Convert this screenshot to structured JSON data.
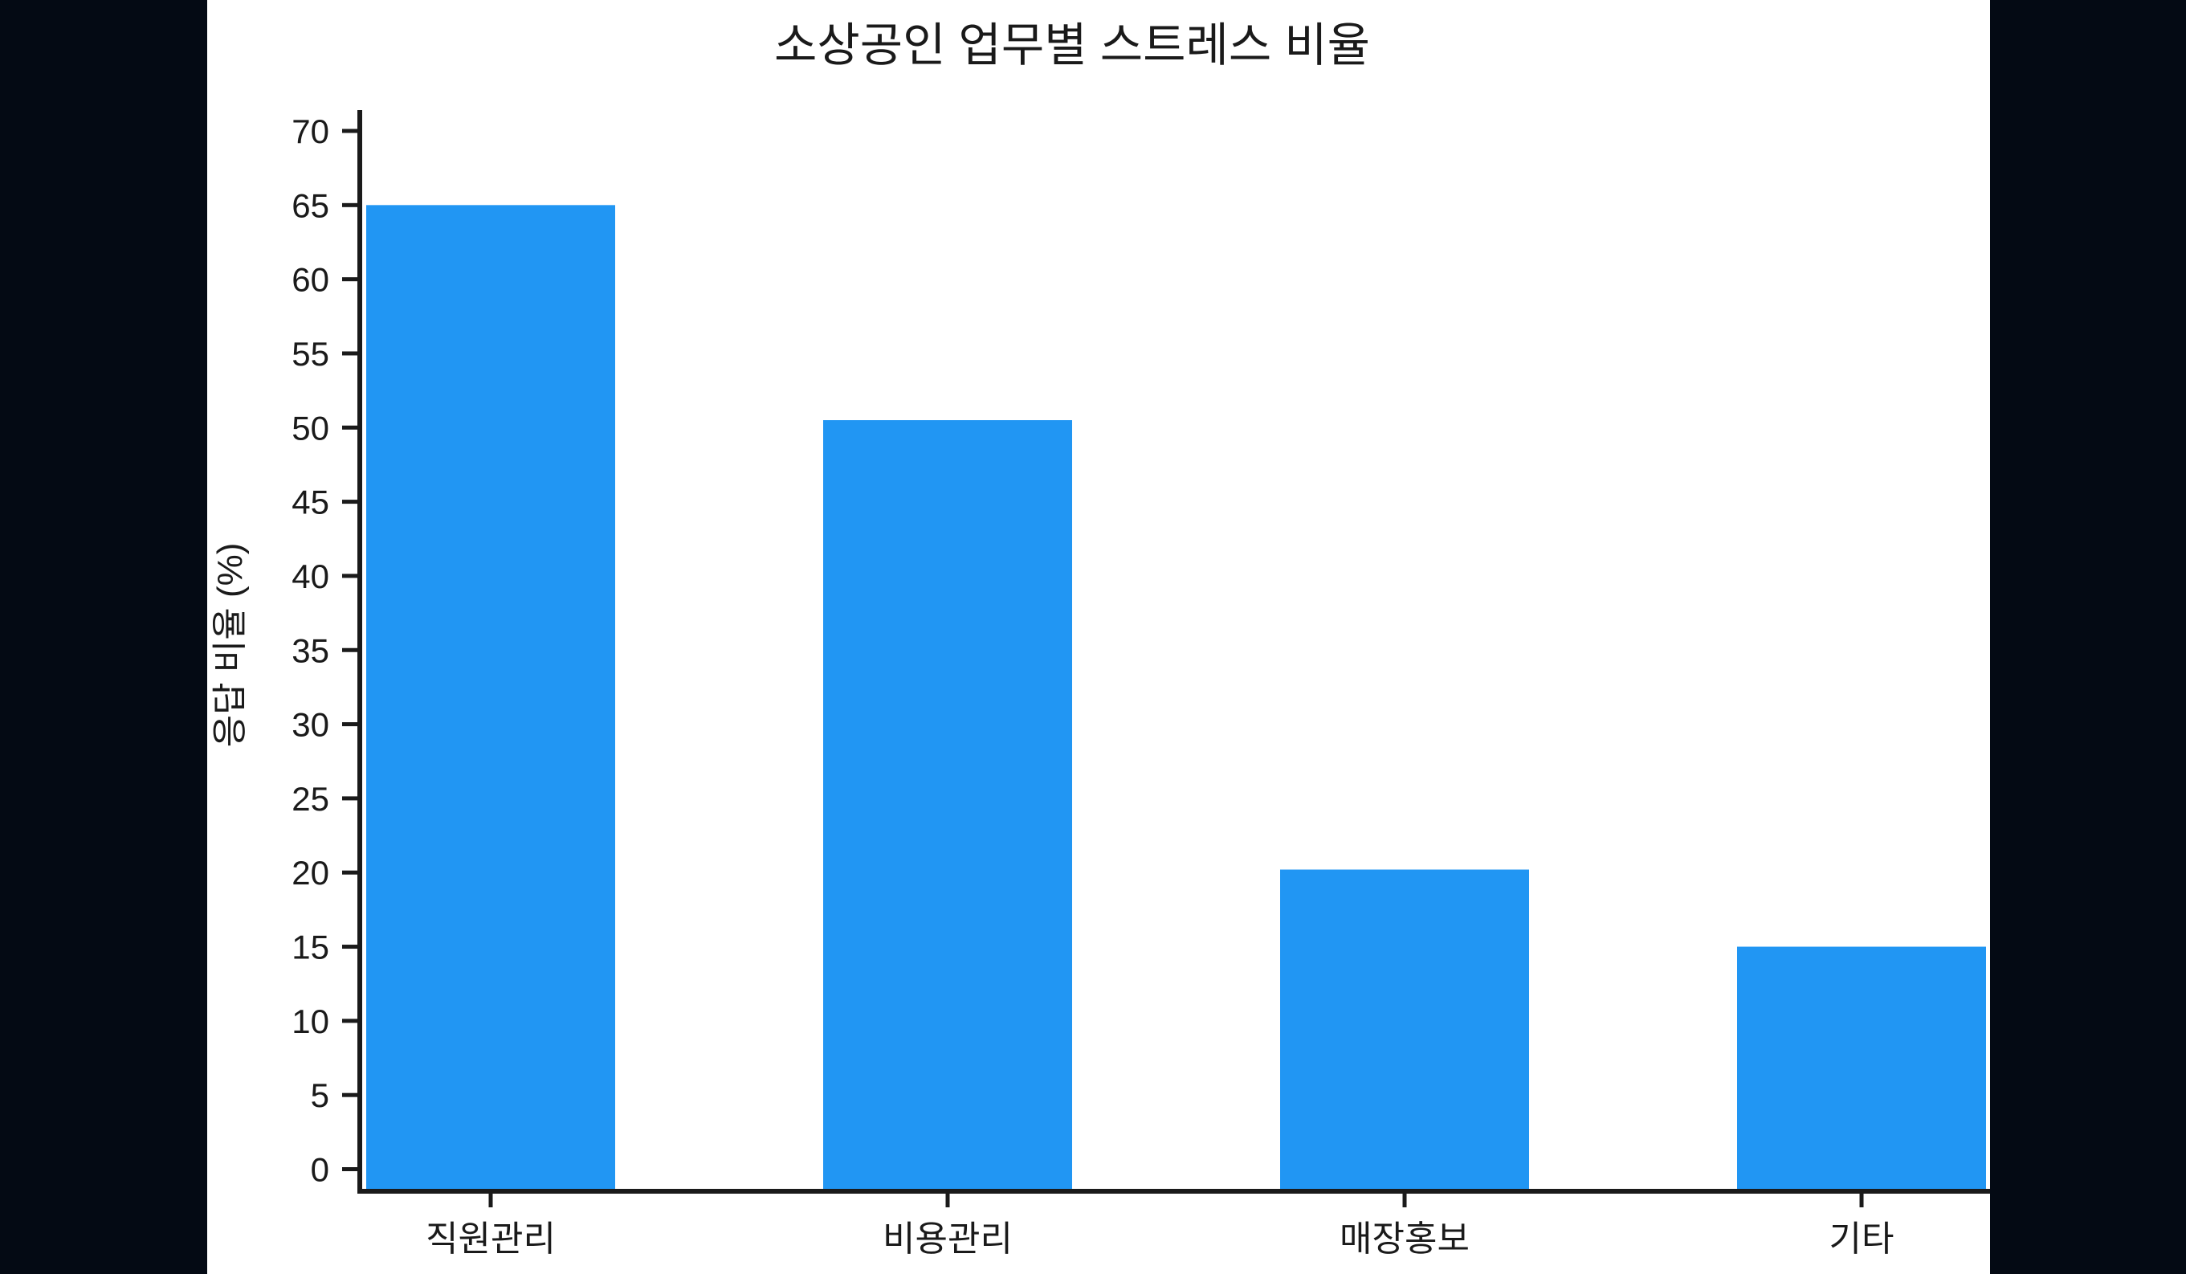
{
  "window": {
    "letterbox_color": "#040a14",
    "panel_color": "#ffffff"
  },
  "chart_data": {
    "type": "bar",
    "title": "소상공인 업무별 스트레스 비율",
    "xlabel": "",
    "ylabel": "응답 비율 (%)",
    "categories": [
      "직원관리",
      "비용관리",
      "매장홍보",
      "기타"
    ],
    "values": [
      65,
      50.5,
      20.2,
      15
    ],
    "ylim": [
      0,
      70
    ],
    "ytick_step": 5,
    "ytick_labels": [
      "0",
      "5",
      "10",
      "15",
      "20",
      "25",
      "30",
      "35",
      "40",
      "45",
      "50",
      "55",
      "60",
      "65",
      "70"
    ],
    "grid": false,
    "legend": "none",
    "bar_color": "#2196f3",
    "axis_color": "#1a1a1a",
    "text_color": "#1a1a1a"
  }
}
